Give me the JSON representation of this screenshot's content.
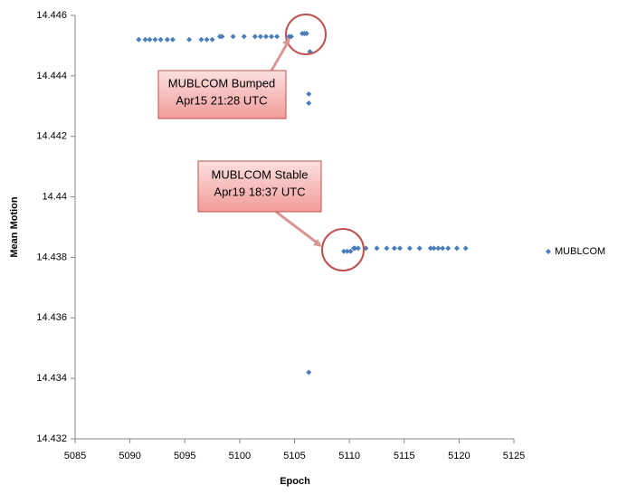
{
  "chart_data": {
    "type": "scatter",
    "xlabel": "Epoch",
    "ylabel": "Mean Motion",
    "xlim": [
      5085,
      5125
    ],
    "xticks": [
      5085,
      5090,
      5095,
      5100,
      5105,
      5110,
      5115,
      5120,
      5125
    ],
    "ylim": [
      14.432,
      14.446
    ],
    "yticks": [
      14.432,
      14.434,
      14.436,
      14.438,
      14.44,
      14.442,
      14.444,
      14.446
    ],
    "legend": "right",
    "series": [
      {
        "name": "MUBLCOM",
        "color": "#4a7ebb",
        "x": [
          5090.8,
          5091.4,
          5091.8,
          5092.3,
          5092.8,
          5093.4,
          5093.9,
          5095.4,
          5096.5,
          5097.0,
          5097.5,
          5098.2,
          5098.4,
          5099.4,
          5100.4,
          5101.4,
          5101.9,
          5102.4,
          5102.9,
          5103.4,
          5104.5,
          5104.7,
          5105.7,
          5105.9,
          5106.1,
          5106.4,
          5106.3,
          5106.3,
          5106.3,
          5109.5,
          5109.8,
          5110.1,
          5110.4,
          5110.5,
          5110.8,
          5111.5,
          5112.5,
          5113.4,
          5114.1,
          5114.6,
          5115.5,
          5116.4,
          5117.4,
          5117.7,
          5118.1,
          5118.5,
          5119.0,
          5119.8,
          5120.6
        ],
        "values": [
          14.4452,
          14.4452,
          14.4452,
          14.4452,
          14.4452,
          14.4452,
          14.4452,
          14.4452,
          14.4452,
          14.4452,
          14.4452,
          14.4453,
          14.4453,
          14.4453,
          14.4453,
          14.4453,
          14.4453,
          14.4453,
          14.4453,
          14.4453,
          14.4453,
          14.4453,
          14.4454,
          14.4454,
          14.4454,
          14.4448,
          14.4434,
          14.4431,
          14.4342,
          14.4382,
          14.4382,
          14.4382,
          14.4383,
          14.4383,
          14.4383,
          14.4383,
          14.4383,
          14.4383,
          14.4383,
          14.4383,
          14.4383,
          14.4383,
          14.4383,
          14.4383,
          14.4383,
          14.4383,
          14.4383,
          14.4383,
          14.4383
        ]
      }
    ],
    "annotations": [
      {
        "lines": [
          "MUBLCOM Bumped",
          "Apr15 21:28 UTC"
        ]
      },
      {
        "lines": [
          "MUBLCOM Stable",
          "Apr19 18:37 UTC"
        ]
      }
    ]
  }
}
